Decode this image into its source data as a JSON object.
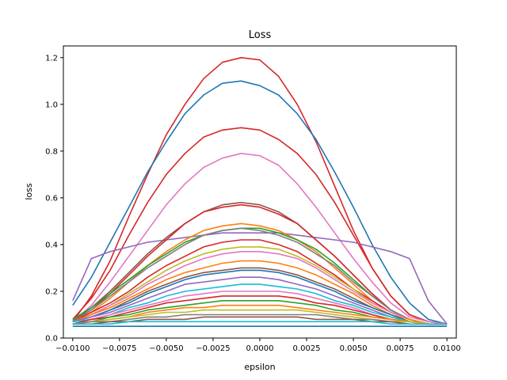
{
  "chart_data": {
    "type": "line",
    "title": "Loss",
    "xlabel": "epsilon",
    "ylabel": "loss",
    "xlim": [
      -0.0105,
      0.0105
    ],
    "ylim": [
      0.0,
      1.25
    ],
    "x_ticks": [
      -0.01,
      -0.0075,
      -0.005,
      -0.0025,
      0.0,
      0.0025,
      0.005,
      0.0075,
      0.01
    ],
    "x_tick_labels": [
      "−0.0100",
      "−0.0075",
      "−0.0050",
      "−0.0025",
      "0.0000",
      "0.0025",
      "0.0050",
      "0.0075",
      "0.0100"
    ],
    "y_ticks": [
      0.0,
      0.2,
      0.4,
      0.6,
      0.8,
      1.0,
      1.2
    ],
    "y_tick_labels": [
      "0.0",
      "0.2",
      "0.4",
      "0.6",
      "0.8",
      "1.0",
      "1.2"
    ],
    "grid": false,
    "x": [
      -0.01,
      -0.009,
      -0.008,
      -0.007,
      -0.006,
      -0.005,
      -0.004,
      -0.003,
      -0.002,
      -0.001,
      0.0,
      0.001,
      0.002,
      0.003,
      0.004,
      0.005,
      0.006,
      0.007,
      0.008,
      0.009,
      0.01
    ],
    "series": [
      {
        "color": "#d62728",
        "values": [
          0.07,
          0.18,
          0.33,
          0.52,
          0.7,
          0.87,
          1.0,
          1.11,
          1.18,
          1.2,
          1.19,
          1.12,
          1.0,
          0.84,
          0.65,
          0.46,
          0.3,
          0.18,
          0.1,
          0.07,
          0.06
        ]
      },
      {
        "color": "#1f77b4",
        "values": [
          0.14,
          0.26,
          0.41,
          0.56,
          0.71,
          0.84,
          0.96,
          1.04,
          1.09,
          1.1,
          1.08,
          1.04,
          0.96,
          0.85,
          0.71,
          0.56,
          0.4,
          0.26,
          0.15,
          0.08,
          0.06
        ]
      },
      {
        "color": "#d62728",
        "values": [
          0.08,
          0.17,
          0.29,
          0.44,
          0.58,
          0.7,
          0.79,
          0.86,
          0.89,
          0.9,
          0.89,
          0.85,
          0.79,
          0.7,
          0.58,
          0.44,
          0.3,
          0.18,
          0.1,
          0.07,
          0.06
        ]
      },
      {
        "color": "#e377c2",
        "values": [
          0.07,
          0.14,
          0.24,
          0.35,
          0.46,
          0.57,
          0.66,
          0.73,
          0.77,
          0.79,
          0.78,
          0.74,
          0.66,
          0.56,
          0.45,
          0.34,
          0.24,
          0.15,
          0.09,
          0.07,
          0.06
        ]
      },
      {
        "color": "#9467bd",
        "values": [
          0.16,
          0.34,
          0.37,
          0.39,
          0.41,
          0.42,
          0.43,
          0.44,
          0.45,
          0.45,
          0.45,
          0.45,
          0.44,
          0.43,
          0.42,
          0.41,
          0.39,
          0.37,
          0.34,
          0.16,
          0.06
        ]
      },
      {
        "color": "#8c564b",
        "values": [
          0.07,
          0.13,
          0.2,
          0.28,
          0.36,
          0.43,
          0.49,
          0.54,
          0.57,
          0.58,
          0.57,
          0.54,
          0.49,
          0.42,
          0.35,
          0.27,
          0.19,
          0.12,
          0.08,
          0.06,
          0.06
        ]
      },
      {
        "color": "#d62728",
        "values": [
          0.07,
          0.12,
          0.19,
          0.27,
          0.35,
          0.42,
          0.49,
          0.54,
          0.56,
          0.57,
          0.56,
          0.53,
          0.49,
          0.42,
          0.35,
          0.27,
          0.19,
          0.12,
          0.08,
          0.06,
          0.06
        ]
      },
      {
        "color": "#ff7f0e",
        "values": [
          0.07,
          0.11,
          0.17,
          0.24,
          0.31,
          0.37,
          0.42,
          0.46,
          0.48,
          0.49,
          0.48,
          0.46,
          0.42,
          0.37,
          0.3,
          0.23,
          0.16,
          0.11,
          0.08,
          0.06,
          0.06
        ]
      },
      {
        "color": "#2ca02c",
        "values": [
          0.08,
          0.13,
          0.19,
          0.25,
          0.31,
          0.36,
          0.41,
          0.44,
          0.46,
          0.47,
          0.47,
          0.45,
          0.42,
          0.38,
          0.32,
          0.25,
          0.18,
          0.12,
          0.08,
          0.06,
          0.06
        ]
      },
      {
        "color": "#7f7f7f",
        "values": [
          0.07,
          0.12,
          0.18,
          0.24,
          0.3,
          0.35,
          0.4,
          0.44,
          0.46,
          0.47,
          0.46,
          0.44,
          0.41,
          0.36,
          0.31,
          0.24,
          0.18,
          0.12,
          0.08,
          0.06,
          0.06
        ]
      },
      {
        "color": "#d62728",
        "values": [
          0.07,
          0.11,
          0.15,
          0.2,
          0.26,
          0.31,
          0.35,
          0.39,
          0.41,
          0.42,
          0.42,
          0.4,
          0.37,
          0.32,
          0.27,
          0.21,
          0.16,
          0.11,
          0.08,
          0.06,
          0.06
        ]
      },
      {
        "color": "#bcbd22",
        "values": [
          0.07,
          0.1,
          0.14,
          0.19,
          0.24,
          0.29,
          0.33,
          0.36,
          0.38,
          0.39,
          0.39,
          0.38,
          0.35,
          0.31,
          0.26,
          0.21,
          0.15,
          0.11,
          0.08,
          0.06,
          0.06
        ]
      },
      {
        "color": "#e377c2",
        "values": [
          0.07,
          0.1,
          0.14,
          0.18,
          0.23,
          0.27,
          0.31,
          0.34,
          0.36,
          0.37,
          0.37,
          0.36,
          0.34,
          0.3,
          0.25,
          0.2,
          0.15,
          0.11,
          0.08,
          0.06,
          0.06
        ]
      },
      {
        "color": "#ff7f0e",
        "values": [
          0.07,
          0.1,
          0.13,
          0.17,
          0.21,
          0.25,
          0.28,
          0.3,
          0.32,
          0.33,
          0.33,
          0.32,
          0.3,
          0.27,
          0.23,
          0.19,
          0.14,
          0.1,
          0.08,
          0.06,
          0.06
        ]
      },
      {
        "color": "#8c564b",
        "values": [
          0.07,
          0.09,
          0.12,
          0.16,
          0.2,
          0.23,
          0.26,
          0.28,
          0.29,
          0.3,
          0.3,
          0.29,
          0.27,
          0.24,
          0.21,
          0.17,
          0.13,
          0.1,
          0.07,
          0.06,
          0.06
        ]
      },
      {
        "color": "#1f77b4",
        "values": [
          0.07,
          0.09,
          0.12,
          0.15,
          0.19,
          0.22,
          0.25,
          0.27,
          0.28,
          0.29,
          0.29,
          0.28,
          0.26,
          0.23,
          0.2,
          0.16,
          0.13,
          0.1,
          0.07,
          0.06,
          0.06
        ]
      },
      {
        "color": "#9467bd",
        "values": [
          0.07,
          0.09,
          0.11,
          0.14,
          0.17,
          0.2,
          0.23,
          0.24,
          0.25,
          0.26,
          0.26,
          0.25,
          0.23,
          0.21,
          0.18,
          0.15,
          0.12,
          0.09,
          0.07,
          0.06,
          0.06
        ]
      },
      {
        "color": "#17becf",
        "values": [
          0.07,
          0.08,
          0.1,
          0.13,
          0.15,
          0.18,
          0.2,
          0.21,
          0.22,
          0.23,
          0.23,
          0.22,
          0.21,
          0.19,
          0.16,
          0.14,
          0.11,
          0.09,
          0.07,
          0.06,
          0.06
        ]
      },
      {
        "color": "#e377c2",
        "values": [
          0.06,
          0.08,
          0.1,
          0.12,
          0.14,
          0.16,
          0.18,
          0.19,
          0.2,
          0.2,
          0.2,
          0.2,
          0.19,
          0.17,
          0.15,
          0.13,
          0.1,
          0.08,
          0.07,
          0.06,
          0.06
        ]
      },
      {
        "color": "#d62728",
        "values": [
          0.06,
          0.08,
          0.09,
          0.11,
          0.13,
          0.15,
          0.16,
          0.17,
          0.18,
          0.18,
          0.18,
          0.18,
          0.17,
          0.15,
          0.14,
          0.12,
          0.1,
          0.08,
          0.07,
          0.06,
          0.06
        ]
      },
      {
        "color": "#2ca02c",
        "values": [
          0.06,
          0.07,
          0.09,
          0.1,
          0.12,
          0.13,
          0.14,
          0.15,
          0.16,
          0.16,
          0.16,
          0.16,
          0.15,
          0.14,
          0.12,
          0.11,
          0.09,
          0.08,
          0.07,
          0.06,
          0.06
        ]
      },
      {
        "color": "#ff7f0e",
        "values": [
          0.06,
          0.07,
          0.08,
          0.09,
          0.11,
          0.12,
          0.13,
          0.13,
          0.14,
          0.14,
          0.14,
          0.14,
          0.13,
          0.12,
          0.11,
          0.1,
          0.09,
          0.08,
          0.07,
          0.06,
          0.06
        ]
      },
      {
        "color": "#bcbd22",
        "values": [
          0.06,
          0.07,
          0.08,
          0.09,
          0.1,
          0.11,
          0.11,
          0.12,
          0.12,
          0.12,
          0.12,
          0.12,
          0.12,
          0.11,
          0.1,
          0.09,
          0.08,
          0.07,
          0.07,
          0.06,
          0.06
        ]
      },
      {
        "color": "#7f7f7f",
        "values": [
          0.06,
          0.07,
          0.07,
          0.08,
          0.09,
          0.09,
          0.1,
          0.1,
          0.1,
          0.1,
          0.1,
          0.1,
          0.1,
          0.1,
          0.09,
          0.08,
          0.08,
          0.07,
          0.06,
          0.06,
          0.06
        ]
      },
      {
        "color": "#8c564b",
        "values": [
          0.06,
          0.06,
          0.07,
          0.07,
          0.08,
          0.08,
          0.08,
          0.09,
          0.09,
          0.09,
          0.09,
          0.09,
          0.09,
          0.08,
          0.08,
          0.08,
          0.07,
          0.07,
          0.06,
          0.06,
          0.06
        ]
      },
      {
        "color": "#17becf",
        "values": [
          0.06,
          0.06,
          0.06,
          0.07,
          0.07,
          0.07,
          0.07,
          0.07,
          0.07,
          0.07,
          0.07,
          0.07,
          0.07,
          0.07,
          0.07,
          0.07,
          0.07,
          0.06,
          0.06,
          0.06,
          0.06
        ]
      },
      {
        "color": "#1f77b4",
        "values": [
          0.05,
          0.05,
          0.05,
          0.05,
          0.05,
          0.05,
          0.05,
          0.05,
          0.05,
          0.05,
          0.05,
          0.05,
          0.05,
          0.05,
          0.05,
          0.05,
          0.05,
          0.05,
          0.05,
          0.05,
          0.05
        ]
      }
    ]
  }
}
